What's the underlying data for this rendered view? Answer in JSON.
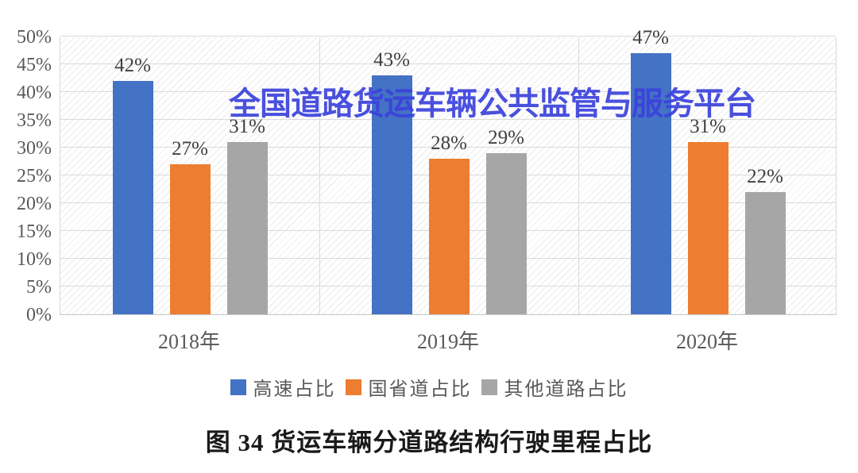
{
  "watermark": {
    "text": "全国道路货运车辆公共监管与服务平台",
    "color": "#3b42dc"
  },
  "caption": {
    "text": "图 34 货运车辆分道路结构行驶里程占比"
  },
  "chart_data": {
    "type": "bar",
    "title": "",
    "categories": [
      "2018年",
      "2019年",
      "2020年"
    ],
    "series": [
      {
        "name": "高速占比",
        "color": "#4472C4",
        "values": [
          42,
          43,
          47
        ]
      },
      {
        "name": "国省道占比",
        "color": "#ED7D31",
        "values": [
          27,
          28,
          31
        ]
      },
      {
        "name": "其他道路占比",
        "color": "#A6A6A6",
        "values": [
          31,
          29,
          22
        ]
      }
    ],
    "value_suffix": "%",
    "ylim": [
      0,
      50
    ],
    "ytick_step": 5,
    "ytick_labels": [
      "0%",
      "5%",
      "10%",
      "15%",
      "20%",
      "25%",
      "30%",
      "35%",
      "40%",
      "45%",
      "50%"
    ],
    "grid": true,
    "legend_position": "bottom",
    "colors": {
      "gridline": "#d9d9d9",
      "axis_text": "#595959",
      "data_label_text": "#404040"
    }
  }
}
